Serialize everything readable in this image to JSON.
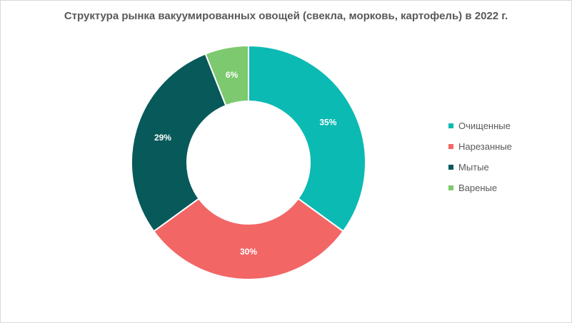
{
  "chart_data": {
    "type": "pie",
    "variant": "donut",
    "title": "Структура рынка вакуумированных овощей (свекла, морковь, картофель) в 2022 г.",
    "legend_position": "right",
    "series": [
      {
        "name": "Очищенные",
        "value": 35,
        "label": "35%",
        "color": "#0bbab3"
      },
      {
        "name": "Нарезанные",
        "value": 30,
        "label": "30%",
        "color": "#f26666"
      },
      {
        "name": "Мытые",
        "value": 29,
        "label": "29%",
        "color": "#07595a"
      },
      {
        "name": "Вареные",
        "value": 6,
        "label": "6%",
        "color": "#7dc96f"
      }
    ]
  }
}
